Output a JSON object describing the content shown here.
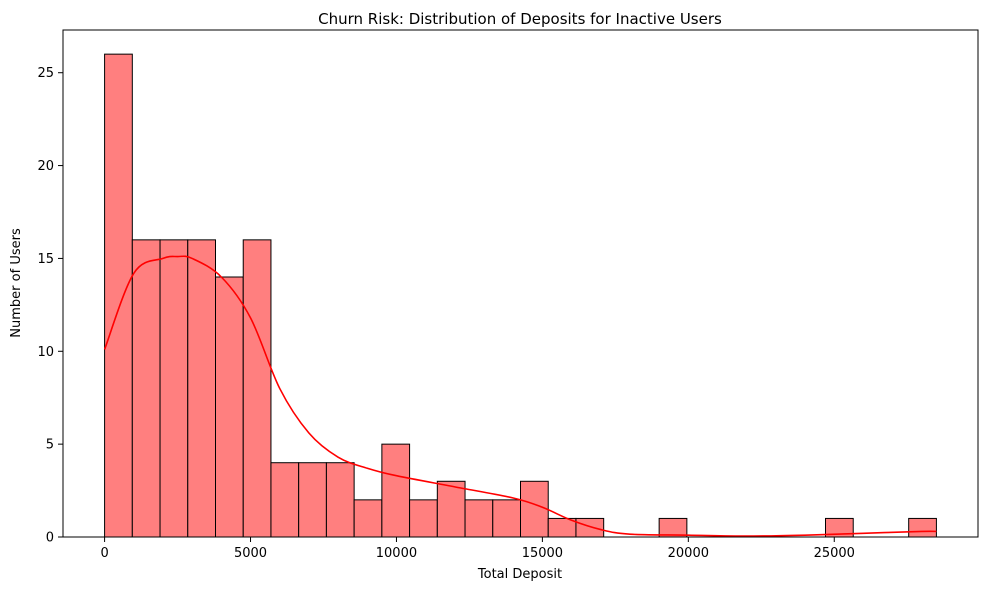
{
  "chart_data": {
    "type": "bar",
    "subtype": "histogram",
    "title": "Churn Risk: Distribution of Deposits for Inactive Users",
    "xlabel": "Total Deposit",
    "ylabel": "Number of Users",
    "bin_start": 0,
    "bin_width": 950,
    "values": [
      26,
      16,
      16,
      16,
      14,
      16,
      4,
      4,
      4,
      2,
      5,
      2,
      3,
      2,
      2,
      3,
      1,
      1,
      0,
      0,
      1,
      0,
      0,
      0,
      0,
      0,
      1,
      0,
      0,
      1
    ],
    "xlim": [
      -1425,
      29925
    ],
    "ylim": [
      0,
      27.3
    ],
    "xticks": [
      0,
      5000,
      10000,
      15000,
      20000,
      25000
    ],
    "yticks": [
      0,
      5,
      10,
      15,
      20,
      25
    ],
    "kde": {
      "x": [
        0,
        1000,
        2000,
        2500,
        3000,
        4000,
        5000,
        6000,
        7000,
        8000,
        9000,
        10000,
        12000,
        14000,
        15000,
        16000,
        17000,
        18000,
        20000,
        22000,
        24000,
        26000,
        28000,
        28500
      ],
      "y": [
        10.1,
        14.2,
        15.0,
        15.1,
        15.0,
        14.0,
        11.8,
        8.0,
        5.6,
        4.3,
        3.7,
        3.3,
        2.7,
        2.1,
        1.6,
        0.9,
        0.4,
        0.15,
        0.1,
        0.05,
        0.1,
        0.2,
        0.3,
        0.3
      ]
    },
    "bar_color": "#ff7f7f",
    "bar_edge_color": "#000000",
    "kde_color": "#ff0000",
    "grid": false,
    "legend": "none"
  }
}
